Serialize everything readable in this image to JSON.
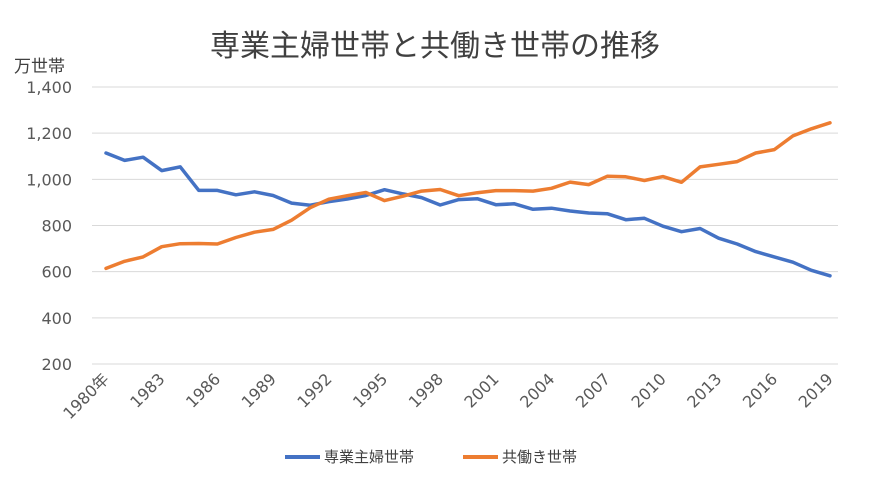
{
  "chart_data": {
    "type": "line",
    "title": "専業主婦世帯と共働き世帯の推移",
    "ylabel": "万世帯",
    "xlabel": "",
    "ylim": [
      200,
      1400
    ],
    "yticks": [
      200,
      400,
      600,
      800,
      1000,
      1200,
      1400
    ],
    "ytick_labels": [
      "200",
      "400",
      "600",
      "800",
      "1,000",
      "1,200",
      "1,400"
    ],
    "x": [
      1980,
      1981,
      1982,
      1983,
      1984,
      1985,
      1986,
      1987,
      1988,
      1989,
      1990,
      1991,
      1992,
      1993,
      1994,
      1995,
      1996,
      1997,
      1998,
      1999,
      2000,
      2001,
      2002,
      2003,
      2004,
      2005,
      2006,
      2007,
      2008,
      2009,
      2010,
      2011,
      2012,
      2013,
      2014,
      2015,
      2016,
      2017,
      2018,
      2019
    ],
    "xtick_values": [
      1980,
      1983,
      1986,
      1989,
      1992,
      1995,
      1998,
      2001,
      2004,
      2007,
      2010,
      2013,
      2016,
      2019
    ],
    "xtick_labels": [
      "1980年",
      "1983",
      "1986",
      "1989",
      "1992",
      "1995",
      "1998",
      "2001",
      "2004",
      "2007",
      "2010",
      "2013",
      "2016",
      "2019"
    ],
    "grid": true,
    "legend_position": "bottom",
    "series": [
      {
        "name": "専業主婦世帯",
        "color": "#4472C4",
        "values": [
          1114,
          1082,
          1096,
          1038,
          1054,
          952,
          952,
          933,
          946,
          930,
          897,
          888,
          903,
          915,
          930,
          955,
          937,
          921,
          889,
          912,
          916,
          890,
          894,
          870,
          875,
          863,
          854,
          851,
          825,
          831,
          797,
          773,
          787,
          745,
          720,
          687,
          664,
          641,
          606,
          582
        ]
      },
      {
        "name": "共働き世帯",
        "color": "#ED7D31",
        "values": [
          614,
          645,
          664,
          708,
          721,
          722,
          720,
          748,
          771,
          783,
          823,
          877,
          914,
          929,
          943,
          908,
          927,
          949,
          956,
          929,
          942,
          951,
          951,
          949,
          961,
          988,
          977,
          1013,
          1011,
          995,
          1012,
          987,
          1054,
          1065,
          1077,
          1114,
          1129,
          1188,
          1219,
          1245
        ]
      }
    ]
  }
}
